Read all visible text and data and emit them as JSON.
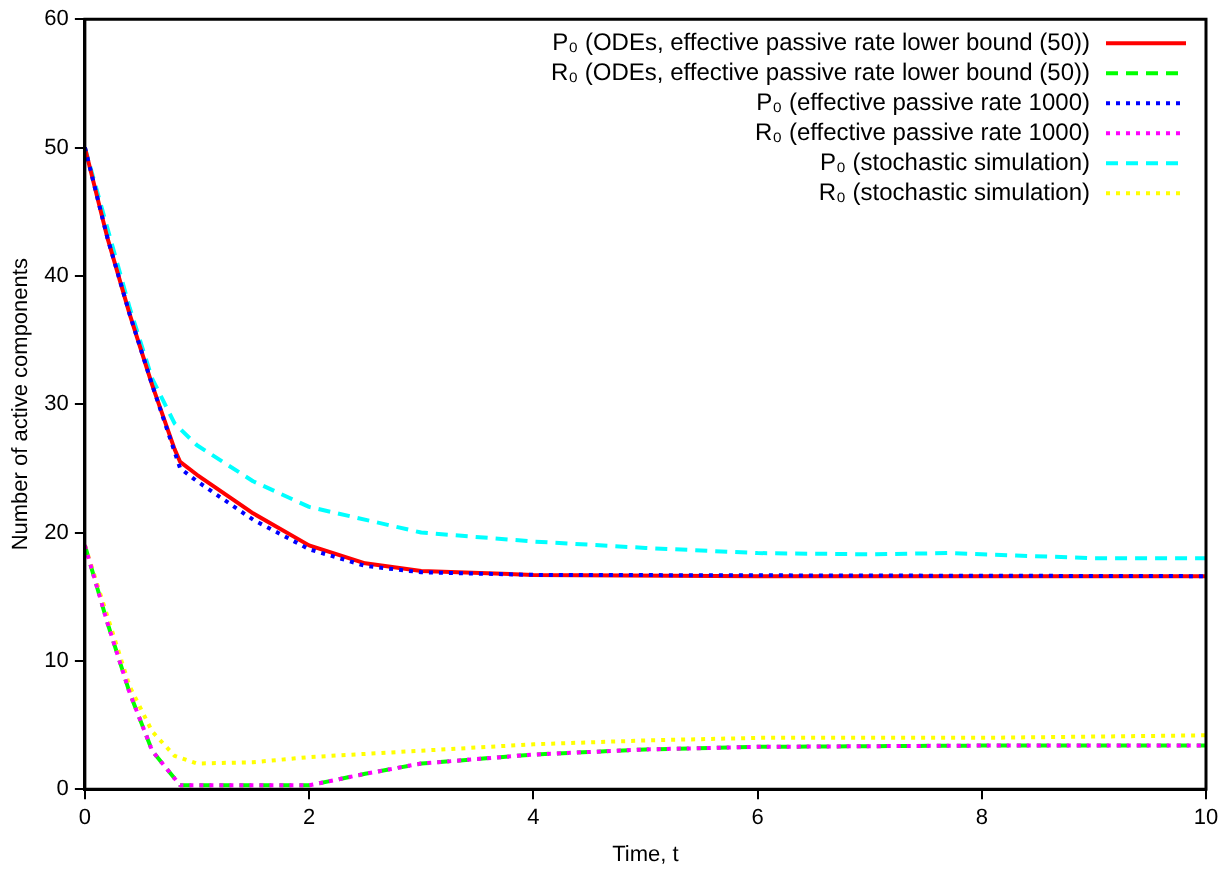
{
  "chart_data": {
    "type": "line",
    "xlabel": "Time, t",
    "ylabel": "Number of active components",
    "xlim": [
      0,
      10
    ],
    "ylim": [
      0,
      60
    ],
    "xticks": [
      0,
      2,
      4,
      6,
      8,
      10
    ],
    "yticks": [
      0,
      10,
      20,
      30,
      40,
      50,
      60
    ],
    "grid": false,
    "legend": "top right",
    "marker": "none",
    "series": [
      {
        "name": "P₀ (ODEs, effective passive rate lower bound (50))",
        "color": "#ff0000",
        "line_style": "solid",
        "x": [
          0,
          0.2,
          0.4,
          0.6,
          0.8,
          0.85,
          1,
          1.5,
          2,
          2.5,
          3,
          4,
          6,
          10
        ],
        "values": [
          50,
          43,
          37,
          31.5,
          26.5,
          25.5,
          24.5,
          21.5,
          19,
          17.6,
          17,
          16.7,
          16.6,
          16.6
        ]
      },
      {
        "name": "R₀ (ODEs, effective passive rate lower bound (50))",
        "color": "#00ff00",
        "line_style": "dashed",
        "x": [
          0,
          0.2,
          0.4,
          0.6,
          0.85,
          1,
          2,
          2.5,
          3,
          4,
          5,
          6,
          8,
          10
        ],
        "values": [
          19,
          13,
          7.5,
          3,
          0.3,
          0.3,
          0.3,
          1.2,
          2,
          2.7,
          3.1,
          3.3,
          3.4,
          3.4
        ]
      },
      {
        "name": "P₀ (effective passive rate 1000)",
        "color": "#0000ff",
        "line_style": "dotted",
        "x": [
          0,
          0.2,
          0.4,
          0.6,
          0.8,
          0.85,
          1,
          1.5,
          2,
          2.5,
          3,
          4,
          10
        ],
        "values": [
          50,
          43,
          37,
          31.5,
          26.3,
          25,
          24,
          21,
          18.7,
          17.4,
          16.9,
          16.7,
          16.6
        ]
      },
      {
        "name": "R₀ (effective passive rate 1000)",
        "color": "#ff00ff",
        "line_style": "dotted",
        "x": [
          0,
          0.2,
          0.4,
          0.6,
          0.85,
          1,
          2,
          2.5,
          3,
          4,
          5,
          6,
          8,
          10
        ],
        "values": [
          19,
          13,
          7.5,
          3,
          0.3,
          0.3,
          0.3,
          1.2,
          2,
          2.7,
          3.1,
          3.3,
          3.4,
          3.4
        ]
      },
      {
        "name": "P₀ (stochastic simulation)",
        "color": "#00ffff",
        "line_style": "dashed",
        "x": [
          0,
          0.4,
          0.6,
          0.8,
          1,
          1.5,
          2,
          3,
          4,
          5,
          6,
          7,
          7.7,
          8,
          9,
          10
        ],
        "values": [
          50,
          37.5,
          32,
          28.5,
          26.8,
          24,
          22,
          20,
          19.3,
          18.8,
          18.4,
          18.3,
          18.4,
          18.3,
          18,
          18
        ]
      },
      {
        "name": "R₀ (stochastic simulation)",
        "color": "#ffff00",
        "line_style": "dotted",
        "x": [
          0,
          0.2,
          0.4,
          0.6,
          0.8,
          1,
          1.5,
          2,
          3,
          4,
          5,
          6,
          8,
          10
        ],
        "values": [
          19,
          13.5,
          8,
          4.5,
          2.6,
          2,
          2.1,
          2.5,
          3,
          3.5,
          3.8,
          4,
          4,
          4.2
        ]
      }
    ]
  }
}
